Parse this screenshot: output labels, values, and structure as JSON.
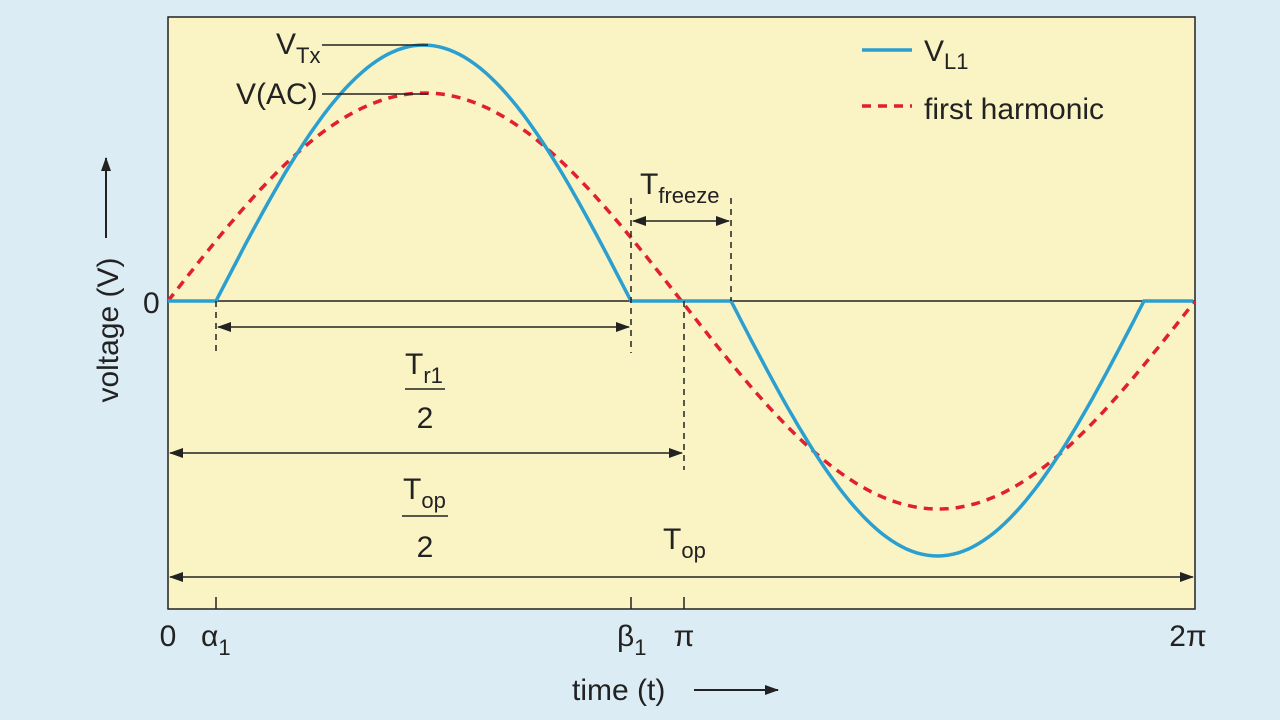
{
  "legend": {
    "vl1_main": "V",
    "vl1_sub": "L1",
    "harmonic": "first harmonic"
  },
  "axes": {
    "ylabel": "voltage (V)",
    "xlabel": "time (t)",
    "zero": "0"
  },
  "xticks": {
    "zero": "0",
    "alpha_main": "α",
    "alpha_sub": "1",
    "beta_main": "β",
    "beta_sub": "1",
    "pi": "π",
    "two_pi": "2π"
  },
  "annotations": {
    "vtx_main": "V",
    "vtx_sub": "Tx",
    "vac": "V(AC)",
    "tfreeze_main": "T",
    "tfreeze_sub": "freeze",
    "tr1_main": "T",
    "tr1_sub": "r1",
    "tr1_den": "2",
    "top_half_main": "T",
    "top_half_sub": "op",
    "top_half_den": "2",
    "top_main": "T",
    "top_sub": "op"
  },
  "colors": {
    "plot_bg": "#faf3c4",
    "page_bg": "#dcecf5",
    "vl1": "#2a9fd0",
    "harmonic": "#e0202e",
    "ink": "#222222"
  }
}
